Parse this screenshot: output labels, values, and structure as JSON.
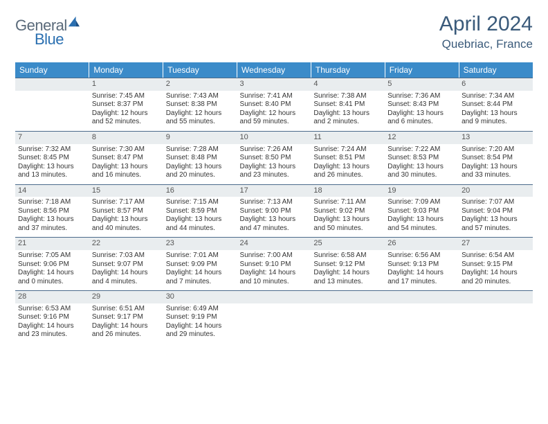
{
  "brand": {
    "part1": "General",
    "part2": "Blue"
  },
  "title": "April 2024",
  "location": "Quebriac, France",
  "colors": {
    "header_bg": "#3b8bc9",
    "header_fg": "#ffffff",
    "daynum_bg": "#e9edef",
    "rule": "#4a6a8a",
    "logo_gray": "#5a6a7a",
    "logo_blue": "#2a6fb0",
    "title_color": "#3a5a7a"
  },
  "weekdays": [
    "Sunday",
    "Monday",
    "Tuesday",
    "Wednesday",
    "Thursday",
    "Friday",
    "Saturday"
  ],
  "weeks": [
    [
      null,
      {
        "n": "1",
        "sr": "Sunrise: 7:45 AM",
        "ss": "Sunset: 8:37 PM",
        "d1": "Daylight: 12 hours",
        "d2": "and 52 minutes."
      },
      {
        "n": "2",
        "sr": "Sunrise: 7:43 AM",
        "ss": "Sunset: 8:38 PM",
        "d1": "Daylight: 12 hours",
        "d2": "and 55 minutes."
      },
      {
        "n": "3",
        "sr": "Sunrise: 7:41 AM",
        "ss": "Sunset: 8:40 PM",
        "d1": "Daylight: 12 hours",
        "d2": "and 59 minutes."
      },
      {
        "n": "4",
        "sr": "Sunrise: 7:38 AM",
        "ss": "Sunset: 8:41 PM",
        "d1": "Daylight: 13 hours",
        "d2": "and 2 minutes."
      },
      {
        "n": "5",
        "sr": "Sunrise: 7:36 AM",
        "ss": "Sunset: 8:43 PM",
        "d1": "Daylight: 13 hours",
        "d2": "and 6 minutes."
      },
      {
        "n": "6",
        "sr": "Sunrise: 7:34 AM",
        "ss": "Sunset: 8:44 PM",
        "d1": "Daylight: 13 hours",
        "d2": "and 9 minutes."
      }
    ],
    [
      {
        "n": "7",
        "sr": "Sunrise: 7:32 AM",
        "ss": "Sunset: 8:45 PM",
        "d1": "Daylight: 13 hours",
        "d2": "and 13 minutes."
      },
      {
        "n": "8",
        "sr": "Sunrise: 7:30 AM",
        "ss": "Sunset: 8:47 PM",
        "d1": "Daylight: 13 hours",
        "d2": "and 16 minutes."
      },
      {
        "n": "9",
        "sr": "Sunrise: 7:28 AM",
        "ss": "Sunset: 8:48 PM",
        "d1": "Daylight: 13 hours",
        "d2": "and 20 minutes."
      },
      {
        "n": "10",
        "sr": "Sunrise: 7:26 AM",
        "ss": "Sunset: 8:50 PM",
        "d1": "Daylight: 13 hours",
        "d2": "and 23 minutes."
      },
      {
        "n": "11",
        "sr": "Sunrise: 7:24 AM",
        "ss": "Sunset: 8:51 PM",
        "d1": "Daylight: 13 hours",
        "d2": "and 26 minutes."
      },
      {
        "n": "12",
        "sr": "Sunrise: 7:22 AM",
        "ss": "Sunset: 8:53 PM",
        "d1": "Daylight: 13 hours",
        "d2": "and 30 minutes."
      },
      {
        "n": "13",
        "sr": "Sunrise: 7:20 AM",
        "ss": "Sunset: 8:54 PM",
        "d1": "Daylight: 13 hours",
        "d2": "and 33 minutes."
      }
    ],
    [
      {
        "n": "14",
        "sr": "Sunrise: 7:18 AM",
        "ss": "Sunset: 8:56 PM",
        "d1": "Daylight: 13 hours",
        "d2": "and 37 minutes."
      },
      {
        "n": "15",
        "sr": "Sunrise: 7:17 AM",
        "ss": "Sunset: 8:57 PM",
        "d1": "Daylight: 13 hours",
        "d2": "and 40 minutes."
      },
      {
        "n": "16",
        "sr": "Sunrise: 7:15 AM",
        "ss": "Sunset: 8:59 PM",
        "d1": "Daylight: 13 hours",
        "d2": "and 44 minutes."
      },
      {
        "n": "17",
        "sr": "Sunrise: 7:13 AM",
        "ss": "Sunset: 9:00 PM",
        "d1": "Daylight: 13 hours",
        "d2": "and 47 minutes."
      },
      {
        "n": "18",
        "sr": "Sunrise: 7:11 AM",
        "ss": "Sunset: 9:02 PM",
        "d1": "Daylight: 13 hours",
        "d2": "and 50 minutes."
      },
      {
        "n": "19",
        "sr": "Sunrise: 7:09 AM",
        "ss": "Sunset: 9:03 PM",
        "d1": "Daylight: 13 hours",
        "d2": "and 54 minutes."
      },
      {
        "n": "20",
        "sr": "Sunrise: 7:07 AM",
        "ss": "Sunset: 9:04 PM",
        "d1": "Daylight: 13 hours",
        "d2": "and 57 minutes."
      }
    ],
    [
      {
        "n": "21",
        "sr": "Sunrise: 7:05 AM",
        "ss": "Sunset: 9:06 PM",
        "d1": "Daylight: 14 hours",
        "d2": "and 0 minutes."
      },
      {
        "n": "22",
        "sr": "Sunrise: 7:03 AM",
        "ss": "Sunset: 9:07 PM",
        "d1": "Daylight: 14 hours",
        "d2": "and 4 minutes."
      },
      {
        "n": "23",
        "sr": "Sunrise: 7:01 AM",
        "ss": "Sunset: 9:09 PM",
        "d1": "Daylight: 14 hours",
        "d2": "and 7 minutes."
      },
      {
        "n": "24",
        "sr": "Sunrise: 7:00 AM",
        "ss": "Sunset: 9:10 PM",
        "d1": "Daylight: 14 hours",
        "d2": "and 10 minutes."
      },
      {
        "n": "25",
        "sr": "Sunrise: 6:58 AM",
        "ss": "Sunset: 9:12 PM",
        "d1": "Daylight: 14 hours",
        "d2": "and 13 minutes."
      },
      {
        "n": "26",
        "sr": "Sunrise: 6:56 AM",
        "ss": "Sunset: 9:13 PM",
        "d1": "Daylight: 14 hours",
        "d2": "and 17 minutes."
      },
      {
        "n": "27",
        "sr": "Sunrise: 6:54 AM",
        "ss": "Sunset: 9:15 PM",
        "d1": "Daylight: 14 hours",
        "d2": "and 20 minutes."
      }
    ],
    [
      {
        "n": "28",
        "sr": "Sunrise: 6:53 AM",
        "ss": "Sunset: 9:16 PM",
        "d1": "Daylight: 14 hours",
        "d2": "and 23 minutes."
      },
      {
        "n": "29",
        "sr": "Sunrise: 6:51 AM",
        "ss": "Sunset: 9:17 PM",
        "d1": "Daylight: 14 hours",
        "d2": "and 26 minutes."
      },
      {
        "n": "30",
        "sr": "Sunrise: 6:49 AM",
        "ss": "Sunset: 9:19 PM",
        "d1": "Daylight: 14 hours",
        "d2": "and 29 minutes."
      },
      null,
      null,
      null,
      null
    ]
  ]
}
